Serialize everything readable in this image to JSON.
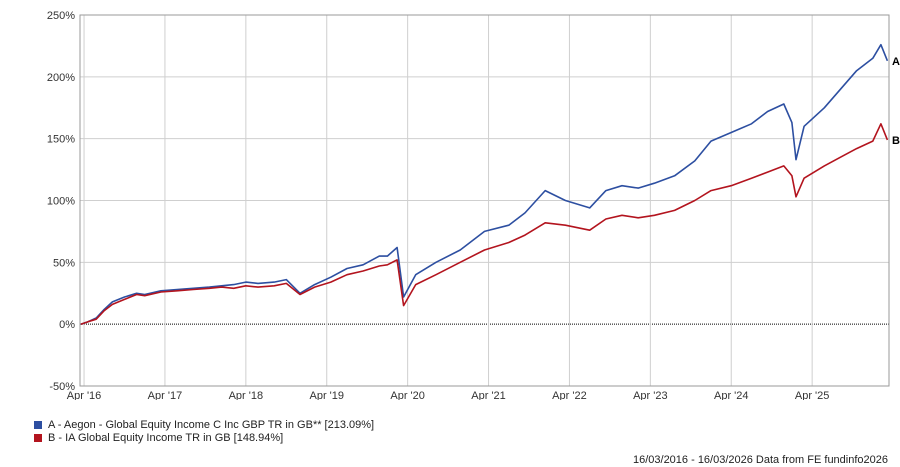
{
  "chart_data": {
    "type": "line",
    "ylabel": "",
    "xlabel": "",
    "ylim": [
      -50,
      250
    ],
    "y_ticks": [
      "250%",
      "200%",
      "150%",
      "100%",
      "50%",
      "0%",
      "-50%"
    ],
    "y_tick_values": [
      250,
      200,
      150,
      100,
      50,
      0,
      -50
    ],
    "x_ticks": [
      "Apr '16",
      "Apr '17",
      "Apr '18",
      "Apr '19",
      "Apr '20",
      "Apr '21",
      "Apr '22",
      "Apr '23",
      "Apr '24",
      "Apr '25"
    ],
    "x_tick_values": [
      2016.25,
      2017.25,
      2018.25,
      2019.25,
      2020.25,
      2021.25,
      2022.25,
      2023.25,
      2024.25,
      2025.25
    ],
    "xlim": [
      2016.2,
      2026.2
    ],
    "grid": true,
    "legend_position": "bottom-left",
    "series": [
      {
        "name": "A - Aegon - Global Equity Income C Inc GBP TR in GB** [213.09%]",
        "end_label": "A",
        "color": "#2d4fa1",
        "points": [
          [
            2016.21,
            0
          ],
          [
            2016.3,
            2
          ],
          [
            2016.4,
            5
          ],
          [
            2016.5,
            12
          ],
          [
            2016.6,
            18
          ],
          [
            2016.75,
            22
          ],
          [
            2016.9,
            25
          ],
          [
            2017.0,
            24
          ],
          [
            2017.2,
            27
          ],
          [
            2017.4,
            28
          ],
          [
            2017.6,
            29
          ],
          [
            2017.8,
            30
          ],
          [
            2017.95,
            31
          ],
          [
            2018.1,
            32
          ],
          [
            2018.25,
            34
          ],
          [
            2018.4,
            33
          ],
          [
            2018.6,
            34
          ],
          [
            2018.75,
            36
          ],
          [
            2018.92,
            25
          ],
          [
            2019.1,
            32
          ],
          [
            2019.3,
            38
          ],
          [
            2019.5,
            45
          ],
          [
            2019.7,
            48
          ],
          [
            2019.9,
            55
          ],
          [
            2020.0,
            55
          ],
          [
            2020.12,
            62
          ],
          [
            2020.2,
            22
          ],
          [
            2020.35,
            40
          ],
          [
            2020.6,
            50
          ],
          [
            2020.9,
            60
          ],
          [
            2021.2,
            75
          ],
          [
            2021.5,
            80
          ],
          [
            2021.7,
            90
          ],
          [
            2021.95,
            108
          ],
          [
            2022.2,
            100
          ],
          [
            2022.5,
            94
          ],
          [
            2022.7,
            108
          ],
          [
            2022.9,
            112
          ],
          [
            2023.1,
            110
          ],
          [
            2023.3,
            114
          ],
          [
            2023.55,
            120
          ],
          [
            2023.8,
            132
          ],
          [
            2024.0,
            148
          ],
          [
            2024.25,
            155
          ],
          [
            2024.5,
            162
          ],
          [
            2024.7,
            172
          ],
          [
            2024.9,
            178
          ],
          [
            2025.0,
            163
          ],
          [
            2025.05,
            133
          ],
          [
            2025.15,
            160
          ],
          [
            2025.4,
            175
          ],
          [
            2025.6,
            190
          ],
          [
            2025.8,
            205
          ],
          [
            2026.0,
            215
          ],
          [
            2026.1,
            226
          ],
          [
            2026.18,
            213
          ]
        ]
      },
      {
        "name": "B - IA Global Equity Income TR in GB [148.94%]",
        "end_label": "B",
        "color": "#b3141e",
        "points": [
          [
            2016.21,
            0
          ],
          [
            2016.3,
            2
          ],
          [
            2016.4,
            4
          ],
          [
            2016.5,
            11
          ],
          [
            2016.6,
            16
          ],
          [
            2016.75,
            20
          ],
          [
            2016.9,
            24
          ],
          [
            2017.0,
            23
          ],
          [
            2017.2,
            26
          ],
          [
            2017.4,
            27
          ],
          [
            2017.6,
            28
          ],
          [
            2017.8,
            29
          ],
          [
            2017.95,
            30
          ],
          [
            2018.1,
            29
          ],
          [
            2018.25,
            31
          ],
          [
            2018.4,
            30
          ],
          [
            2018.6,
            31
          ],
          [
            2018.75,
            33
          ],
          [
            2018.92,
            24
          ],
          [
            2019.1,
            30
          ],
          [
            2019.3,
            34
          ],
          [
            2019.5,
            40
          ],
          [
            2019.7,
            43
          ],
          [
            2019.9,
            47
          ],
          [
            2020.0,
            48
          ],
          [
            2020.12,
            52
          ],
          [
            2020.2,
            15
          ],
          [
            2020.35,
            32
          ],
          [
            2020.6,
            40
          ],
          [
            2020.9,
            50
          ],
          [
            2021.2,
            60
          ],
          [
            2021.5,
            66
          ],
          [
            2021.7,
            72
          ],
          [
            2021.95,
            82
          ],
          [
            2022.2,
            80
          ],
          [
            2022.5,
            76
          ],
          [
            2022.7,
            85
          ],
          [
            2022.9,
            88
          ],
          [
            2023.1,
            86
          ],
          [
            2023.3,
            88
          ],
          [
            2023.55,
            92
          ],
          [
            2023.8,
            100
          ],
          [
            2024.0,
            108
          ],
          [
            2024.25,
            112
          ],
          [
            2024.5,
            118
          ],
          [
            2024.7,
            123
          ],
          [
            2024.9,
            128
          ],
          [
            2025.0,
            120
          ],
          [
            2025.05,
            103
          ],
          [
            2025.15,
            118
          ],
          [
            2025.4,
            128
          ],
          [
            2025.6,
            135
          ],
          [
            2025.8,
            142
          ],
          [
            2026.0,
            148
          ],
          [
            2026.1,
            162
          ],
          [
            2026.18,
            149
          ]
        ]
      }
    ]
  },
  "footer": {
    "text": "16/03/2016 - 16/03/2026 Data from FE fundinfo2026"
  }
}
